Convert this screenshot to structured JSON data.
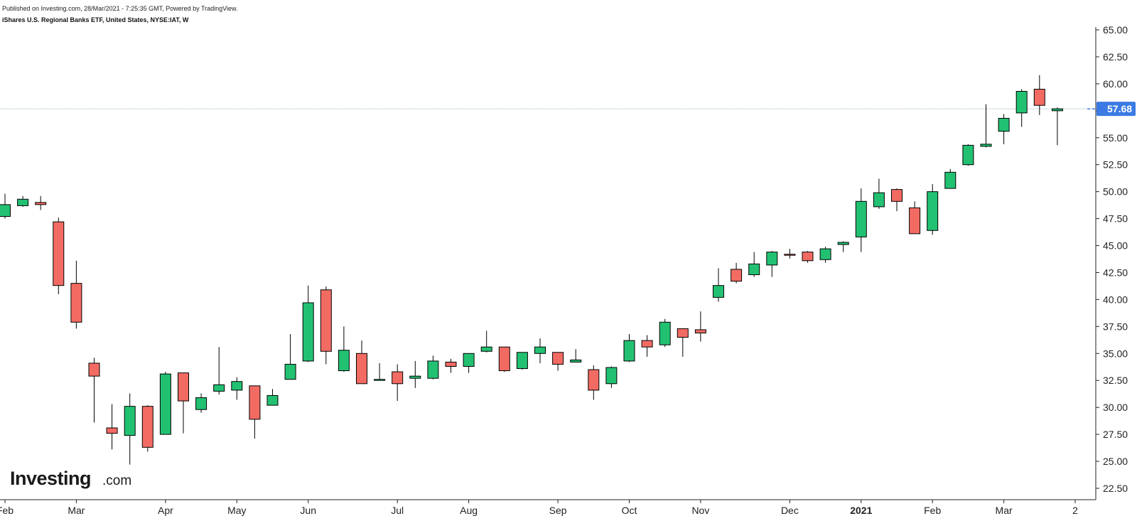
{
  "header": {
    "published": "Published on Investing.com, 28/Mar/2021 - 7:25:35 GMT, Powered by TradingView.",
    "instrument": "iShares U.S. Regional Banks ETF, United States, NYSE:IAT, W"
  },
  "logo": {
    "main": "Investing",
    "suffix": ".com"
  },
  "price_label": "57.68",
  "colors": {
    "up": "#22c172",
    "down": "#f26b63",
    "wick": "#000000",
    "price_line": "#9eb7c8",
    "price_bg": "#3b7ae3"
  },
  "chart_data": {
    "type": "candlestick",
    "interval": "weekly",
    "y_axis_position": "right",
    "ylim": [
      22.5,
      65.0
    ],
    "yticks": [
      "65.00",
      "62.50",
      "60.00",
      "57.50",
      "55.00",
      "52.50",
      "50.00",
      "47.50",
      "45.00",
      "42.50",
      "40.00",
      "37.50",
      "35.00",
      "32.50",
      "30.00",
      "27.50",
      "25.00",
      "22.50"
    ],
    "xticks": [
      {
        "label": "Feb",
        "index": 0,
        "bold": false
      },
      {
        "label": "Mar",
        "index": 4,
        "bold": false
      },
      {
        "label": "Apr",
        "index": 9,
        "bold": false
      },
      {
        "label": "May",
        "index": 13,
        "bold": false
      },
      {
        "label": "Jun",
        "index": 17,
        "bold": false
      },
      {
        "label": "Jul",
        "index": 22,
        "bold": false
      },
      {
        "label": "Aug",
        "index": 26,
        "bold": false
      },
      {
        "label": "Sep",
        "index": 31,
        "bold": false
      },
      {
        "label": "Oct",
        "index": 35,
        "bold": false
      },
      {
        "label": "Nov",
        "index": 39,
        "bold": false
      },
      {
        "label": "Dec",
        "index": 44,
        "bold": false
      },
      {
        "label": "2021",
        "index": 48,
        "bold": true
      },
      {
        "label": "Feb",
        "index": 52,
        "bold": false
      },
      {
        "label": "Mar",
        "index": 56,
        "bold": false
      },
      {
        "label": "2",
        "index": 60,
        "bold": false
      }
    ],
    "last_price": 57.68,
    "candles": [
      {
        "o": 47.7,
        "h": 49.8,
        "l": 47.5,
        "c": 48.8
      },
      {
        "o": 48.7,
        "h": 49.6,
        "l": 48.6,
        "c": 49.3
      },
      {
        "o": 49.0,
        "h": 49.6,
        "l": 48.3,
        "c": 48.8
      },
      {
        "o": 47.2,
        "h": 47.6,
        "l": 40.5,
        "c": 41.3
      },
      {
        "o": 41.5,
        "h": 43.6,
        "l": 37.3,
        "c": 37.9
      },
      {
        "o": 34.1,
        "h": 34.6,
        "l": 28.6,
        "c": 32.9
      },
      {
        "o": 28.1,
        "h": 30.3,
        "l": 26.1,
        "c": 27.6
      },
      {
        "o": 27.4,
        "h": 31.3,
        "l": 24.7,
        "c": 30.1
      },
      {
        "o": 30.1,
        "h": 30.2,
        "l": 25.9,
        "c": 26.3
      },
      {
        "o": 27.5,
        "h": 33.3,
        "l": 27.5,
        "c": 33.1
      },
      {
        "o": 33.2,
        "h": 33.2,
        "l": 27.6,
        "c": 30.6
      },
      {
        "o": 29.8,
        "h": 31.3,
        "l": 29.5,
        "c": 30.9
      },
      {
        "o": 31.5,
        "h": 35.6,
        "l": 31.2,
        "c": 32.1
      },
      {
        "o": 31.6,
        "h": 32.8,
        "l": 30.7,
        "c": 32.4
      },
      {
        "o": 32.0,
        "h": 32.0,
        "l": 27.1,
        "c": 28.9
      },
      {
        "o": 30.2,
        "h": 31.7,
        "l": 30.2,
        "c": 31.1
      },
      {
        "o": 32.6,
        "h": 36.8,
        "l": 32.6,
        "c": 34.0
      },
      {
        "o": 34.3,
        "h": 41.3,
        "l": 34.2,
        "c": 39.7
      },
      {
        "o": 40.9,
        "h": 41.2,
        "l": 34.0,
        "c": 35.2
      },
      {
        "o": 33.4,
        "h": 37.5,
        "l": 33.3,
        "c": 35.3
      },
      {
        "o": 35.0,
        "h": 36.2,
        "l": 32.2,
        "c": 32.2
      },
      {
        "o": 32.6,
        "h": 34.1,
        "l": 32.6,
        "c": 32.6
      },
      {
        "o": 33.3,
        "h": 34.0,
        "l": 30.6,
        "c": 32.2
      },
      {
        "o": 32.7,
        "h": 34.3,
        "l": 31.8,
        "c": 32.9
      },
      {
        "o": 32.7,
        "h": 34.8,
        "l": 32.6,
        "c": 34.3
      },
      {
        "o": 34.2,
        "h": 34.5,
        "l": 33.2,
        "c": 33.8
      },
      {
        "o": 33.8,
        "h": 35.0,
        "l": 33.2,
        "c": 35.0
      },
      {
        "o": 35.2,
        "h": 37.1,
        "l": 35.1,
        "c": 35.6
      },
      {
        "o": 35.6,
        "h": 35.6,
        "l": 33.3,
        "c": 33.4
      },
      {
        "o": 33.6,
        "h": 35.0,
        "l": 33.5,
        "c": 35.1
      },
      {
        "o": 35.0,
        "h": 36.4,
        "l": 34.1,
        "c": 35.6
      },
      {
        "o": 35.1,
        "h": 35.1,
        "l": 33.4,
        "c": 34.0
      },
      {
        "o": 34.2,
        "h": 35.4,
        "l": 34.2,
        "c": 34.4
      },
      {
        "o": 33.5,
        "h": 33.9,
        "l": 30.7,
        "c": 31.6
      },
      {
        "o": 32.2,
        "h": 33.8,
        "l": 31.8,
        "c": 33.7
      },
      {
        "o": 34.3,
        "h": 36.8,
        "l": 34.2,
        "c": 36.2
      },
      {
        "o": 36.2,
        "h": 36.7,
        "l": 34.7,
        "c": 35.6
      },
      {
        "o": 35.8,
        "h": 38.2,
        "l": 35.6,
        "c": 37.9
      },
      {
        "o": 37.3,
        "h": 37.3,
        "l": 34.7,
        "c": 36.5
      },
      {
        "o": 37.2,
        "h": 38.9,
        "l": 36.1,
        "c": 36.9
      },
      {
        "o": 40.2,
        "h": 42.9,
        "l": 39.8,
        "c": 41.3
      },
      {
        "o": 42.8,
        "h": 43.4,
        "l": 41.5,
        "c": 41.7
      },
      {
        "o": 42.3,
        "h": 44.4,
        "l": 42.1,
        "c": 43.3
      },
      {
        "o": 43.2,
        "h": 44.5,
        "l": 42.1,
        "c": 44.4
      },
      {
        "o": 44.2,
        "h": 44.7,
        "l": 43.8,
        "c": 44.1
      },
      {
        "o": 44.4,
        "h": 44.5,
        "l": 43.4,
        "c": 43.6
      },
      {
        "o": 43.7,
        "h": 44.9,
        "l": 43.4,
        "c": 44.7
      },
      {
        "o": 45.1,
        "h": 45.4,
        "l": 44.4,
        "c": 45.3
      },
      {
        "o": 45.8,
        "h": 50.3,
        "l": 44.4,
        "c": 49.1
      },
      {
        "o": 48.6,
        "h": 51.2,
        "l": 48.4,
        "c": 49.9
      },
      {
        "o": 50.2,
        "h": 50.3,
        "l": 48.2,
        "c": 49.1
      },
      {
        "o": 48.5,
        "h": 49.1,
        "l": 46.1,
        "c": 46.1
      },
      {
        "o": 46.4,
        "h": 50.7,
        "l": 46.0,
        "c": 50.0
      },
      {
        "o": 50.3,
        "h": 52.1,
        "l": 50.3,
        "c": 51.8
      },
      {
        "o": 52.5,
        "h": 54.4,
        "l": 52.4,
        "c": 54.3
      },
      {
        "o": 54.2,
        "h": 58.1,
        "l": 54.1,
        "c": 54.4
      },
      {
        "o": 55.6,
        "h": 57.2,
        "l": 54.4,
        "c": 56.8
      },
      {
        "o": 57.3,
        "h": 59.5,
        "l": 56.0,
        "c": 59.3
      },
      {
        "o": 59.5,
        "h": 60.8,
        "l": 57.1,
        "c": 58.0
      },
      {
        "o": 57.5,
        "h": 57.8,
        "l": 54.3,
        "c": 57.68
      }
    ]
  }
}
